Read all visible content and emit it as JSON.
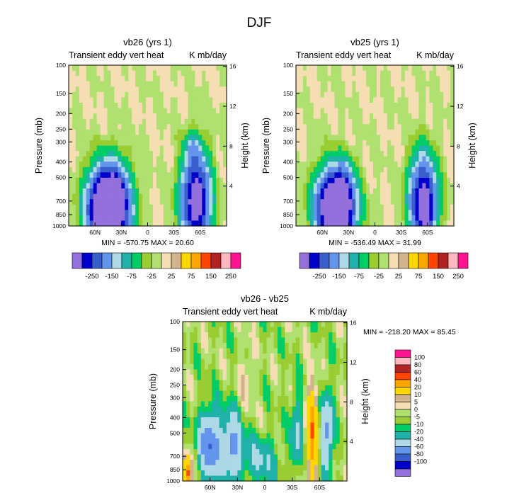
{
  "page": {
    "title": "DJF"
  },
  "colorbar_fill": [
    "#9370db",
    "#0000cd",
    "#3a5fcd",
    "#6495ed",
    "#add8e6",
    "#20b2aa",
    "#00cd66",
    "#9acd32",
    "#b0e070",
    "#f5deb3",
    "#d2b48c",
    "#ffd700",
    "#ffa500",
    "#ff4500",
    "#b22222",
    "#ffb6c1",
    "#ff1493"
  ],
  "chart_data": [
    {
      "type": "heatmap",
      "title": "vb26 (yrs 1)",
      "left_label": "Transient eddy vert heat",
      "right_label": "K mb/day",
      "ylabel": "Pressure (mb)",
      "y2label": "Height (km)",
      "x_ticks": [
        "60N",
        "30N",
        "0",
        "30S",
        "60S"
      ],
      "x_values": [
        60,
        30,
        0,
        -30,
        -60
      ],
      "xlim": [
        90,
        -90
      ],
      "y_ticks": [
        "100",
        "150",
        "200",
        "250",
        "300",
        "400",
        "500",
        "700",
        "850",
        "1000"
      ],
      "y_values": [
        100,
        150,
        200,
        250,
        300,
        400,
        500,
        700,
        850,
        1000
      ],
      "ylim": [
        1000,
        100
      ],
      "y2_ticks": [
        "16",
        "12",
        "8",
        "4"
      ],
      "y2_values": [
        16,
        12,
        8,
        4
      ],
      "stats": "MIN = -570.75   MAX = 20.60",
      "min": -570.75,
      "max": 20.6,
      "colorbar_ticks": [
        "-250",
        "-150",
        "-75",
        "-25",
        "25",
        "75",
        "150",
        "250"
      ],
      "features": [
        {
          "lat": 45,
          "p": 780,
          "dlat": 20,
          "dlogp": 0.22,
          "amp": -560
        },
        {
          "lat": 35,
          "p": 650,
          "dlat": 10,
          "dlogp": 0.18,
          "amp": -80
        },
        {
          "lat": -55,
          "p": 700,
          "dlat": 15,
          "dlogp": 0.26,
          "amp": -320
        },
        {
          "lat": -52,
          "p": 330,
          "dlat": 9,
          "dlogp": 0.1,
          "amp": -60
        }
      ]
    },
    {
      "type": "heatmap",
      "title": "vb25 (yrs 1)",
      "left_label": "Transient eddy vert heat",
      "right_label": "K mb/day",
      "ylabel": "Pressure (mb)",
      "y2label": "Height (km)",
      "x_ticks": [
        "60N",
        "30N",
        "0",
        "30S",
        "60S"
      ],
      "x_values": [
        60,
        30,
        0,
        -30,
        -60
      ],
      "xlim": [
        90,
        -90
      ],
      "y_ticks": [
        "100",
        "150",
        "200",
        "250",
        "300",
        "400",
        "500",
        "700",
        "850",
        "1000"
      ],
      "y_values": [
        100,
        150,
        200,
        250,
        300,
        400,
        500,
        700,
        850,
        1000
      ],
      "ylim": [
        1000,
        100
      ],
      "y2_ticks": [
        "16",
        "12",
        "8",
        "4"
      ],
      "y2_values": [
        16,
        12,
        8,
        4
      ],
      "stats": "MIN = -536.49   MAX = 31.99",
      "min": -536.49,
      "max": 31.99,
      "colorbar_ticks": [
        "-250",
        "-150",
        "-75",
        "-25",
        "25",
        "75",
        "150",
        "250"
      ],
      "features": [
        {
          "lat": 45,
          "p": 780,
          "dlat": 19,
          "dlogp": 0.21,
          "amp": -500
        },
        {
          "lat": 35,
          "p": 650,
          "dlat": 10,
          "dlogp": 0.18,
          "amp": -70
        },
        {
          "lat": -55,
          "p": 700,
          "dlat": 14,
          "dlogp": 0.25,
          "amp": -300
        },
        {
          "lat": -58,
          "p": 800,
          "dlat": 5,
          "dlogp": 0.08,
          "amp": -200
        }
      ]
    },
    {
      "type": "heatmap",
      "title": "vb26 - vb25",
      "left_label": "Transient eddy vert heat",
      "right_label": "K mb/day",
      "ylabel": "Pressure (mb)",
      "y2label": "Height (km)",
      "x_ticks": [
        "60N",
        "30N",
        "0",
        "30S",
        "60S"
      ],
      "x_values": [
        60,
        30,
        0,
        -30,
        -60
      ],
      "xlim": [
        90,
        -90
      ],
      "y_ticks": [
        "100",
        "150",
        "200",
        "250",
        "300",
        "400",
        "500",
        "700",
        "850",
        "1000"
      ],
      "y_values": [
        100,
        150,
        200,
        250,
        300,
        400,
        500,
        700,
        850,
        1000
      ],
      "ylim": [
        1000,
        100
      ],
      "y2_ticks": [
        "16",
        "12",
        "8",
        "4"
      ],
      "y2_values": [
        16,
        12,
        8,
        4
      ],
      "stats": "MIN = -218.20   MAX =  85.45",
      "min": -218.2,
      "max": 85.45,
      "colorbar_ticks": [
        "100",
        "80",
        "60",
        "40",
        "20",
        "10",
        "5",
        "0",
        "-5",
        "-10",
        "-20",
        "-40",
        "-60",
        "-80",
        "-100"
      ],
      "colorbar_fill": [
        "#ff1493",
        "#ffb6c1",
        "#b22222",
        "#ff4500",
        "#ffa500",
        "#ffd700",
        "#d2b48c",
        "#f5deb3",
        "#b0e070",
        "#9acd32",
        "#00cd66",
        "#20b2aa",
        "#add8e6",
        "#6495ed",
        "#3a5fcd",
        "#0000cd",
        "#9370db"
      ],
      "features": [
        {
          "lat": 60,
          "p": 600,
          "dlat": 12,
          "dlogp": 0.2,
          "amp": -60
        },
        {
          "lat": 35,
          "p": 600,
          "dlat": 10,
          "dlogp": 0.2,
          "amp": -45
        },
        {
          "lat": 5,
          "p": 750,
          "dlat": 20,
          "dlogp": 0.15,
          "amp": -20
        },
        {
          "lat": -52,
          "p": 500,
          "dlat": 6,
          "dlogp": 0.28,
          "amp": 55
        },
        {
          "lat": -68,
          "p": 500,
          "dlat": 6,
          "dlogp": 0.25,
          "amp": -45
        },
        {
          "lat": -35,
          "p": 500,
          "dlat": 6,
          "dlogp": 0.25,
          "amp": -25
        },
        {
          "lat": 85,
          "p": 900,
          "dlat": 4,
          "dlogp": 0.1,
          "amp": 70
        },
        {
          "lat": 20,
          "p": 220,
          "dlat": 8,
          "dlogp": 0.2,
          "amp": 10
        }
      ]
    }
  ]
}
